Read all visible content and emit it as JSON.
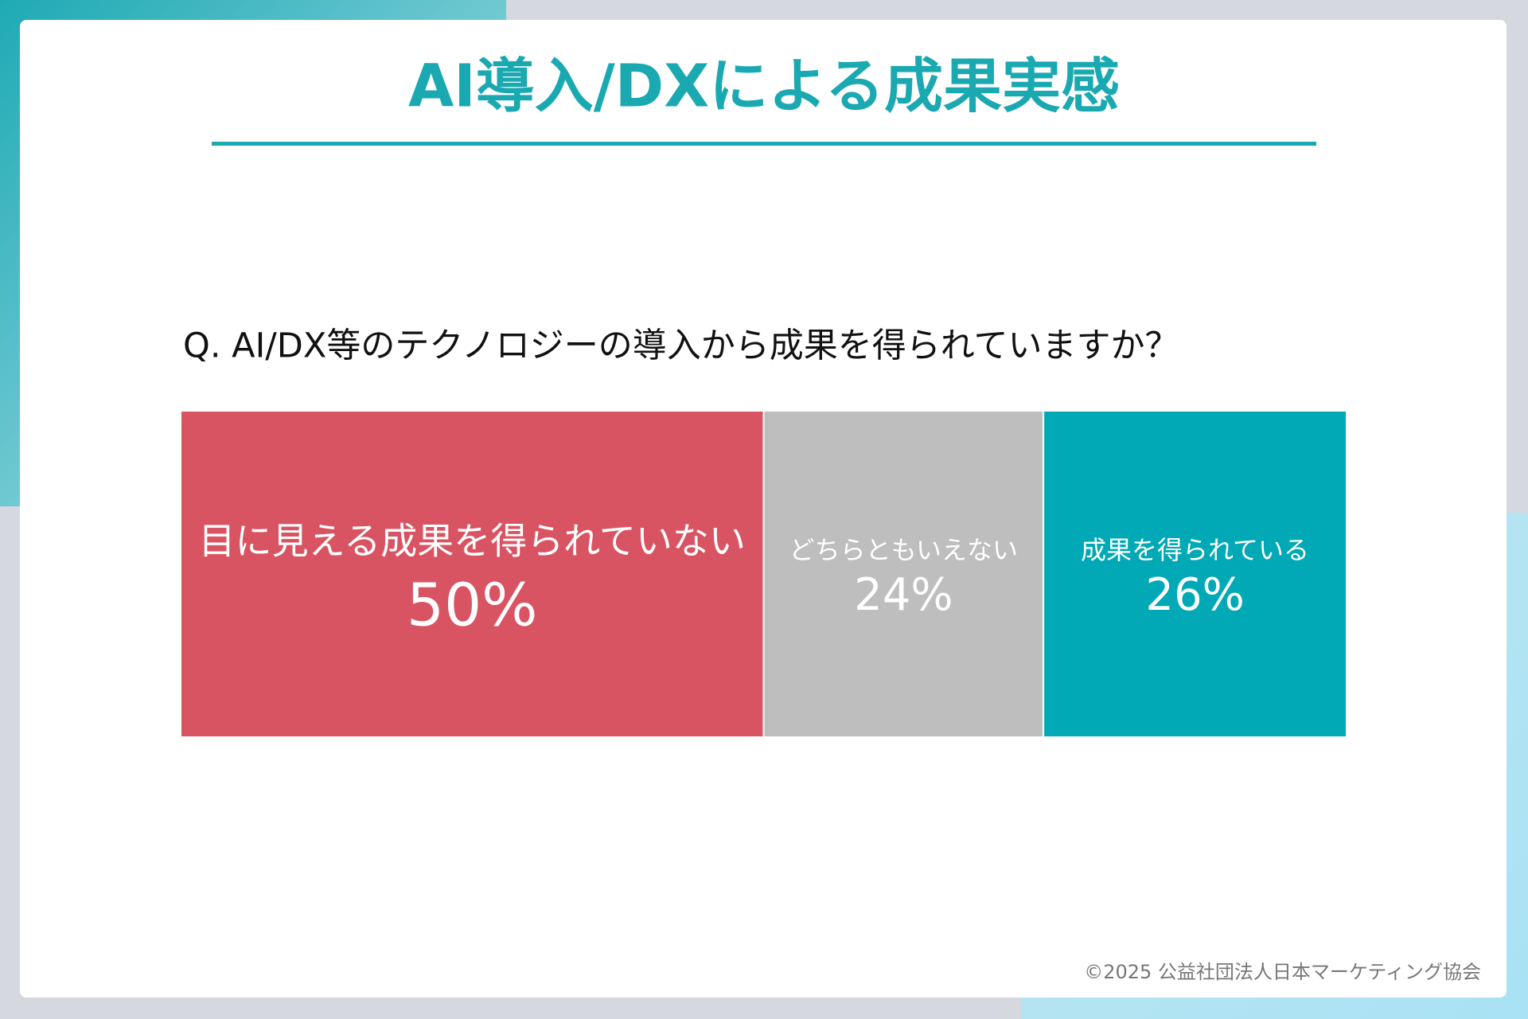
{
  "chart_data": {
    "type": "stacked_bar",
    "title": "AI導入/DXによる成果実感",
    "subtitle": "Q. AI/DX等のテクノロジーの導入から成果を得られていますか？",
    "series": [
      {
        "name": "目に見える成果を得られていない",
        "color": "#d95463",
        "values": [
          50
        ],
        "value_labels": [
          "50%"
        ]
      },
      {
        "name": "どちらともいえない",
        "color": "#bebebe",
        "values": [
          24
        ],
        "value_labels": [
          "24%"
        ]
      },
      {
        "name": "成果を得られている",
        "color": "#00a9b5",
        "values": [
          26
        ],
        "value_labels": [
          "26%"
        ]
      }
    ]
  },
  "footer": "©2025 公益社団法人日本マーケティング協会"
}
